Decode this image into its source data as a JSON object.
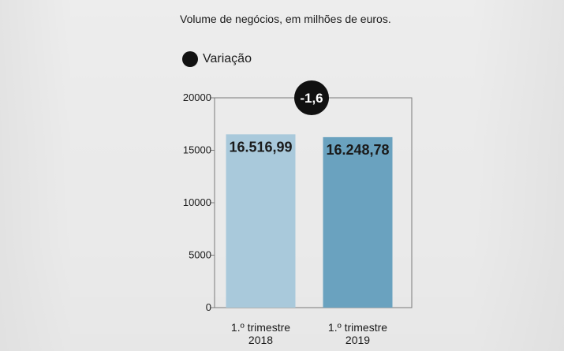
{
  "subtitle": "Volume de negócios, em milhões de euros.",
  "legend": {
    "label": "Variação"
  },
  "badge": {
    "text": "-1,6"
  },
  "chart_data": {
    "type": "bar",
    "categories": [
      [
        "1.º trimestre",
        "2018"
      ],
      [
        "1.º trimestre",
        "2019"
      ]
    ],
    "values": [
      16516.99,
      16248.78
    ],
    "value_labels": [
      "16.516,99",
      "16.248,78"
    ],
    "colors": [
      "#a9c9db",
      "#6aa2bf"
    ],
    "ylim": [
      0,
      20000
    ],
    "yticks": [
      0,
      5000,
      10000,
      15000,
      20000
    ],
    "ytick_labels": [
      "0",
      "5000",
      "10000",
      "15000",
      "20000"
    ],
    "title": "",
    "xlabel": "",
    "ylabel": ""
  }
}
